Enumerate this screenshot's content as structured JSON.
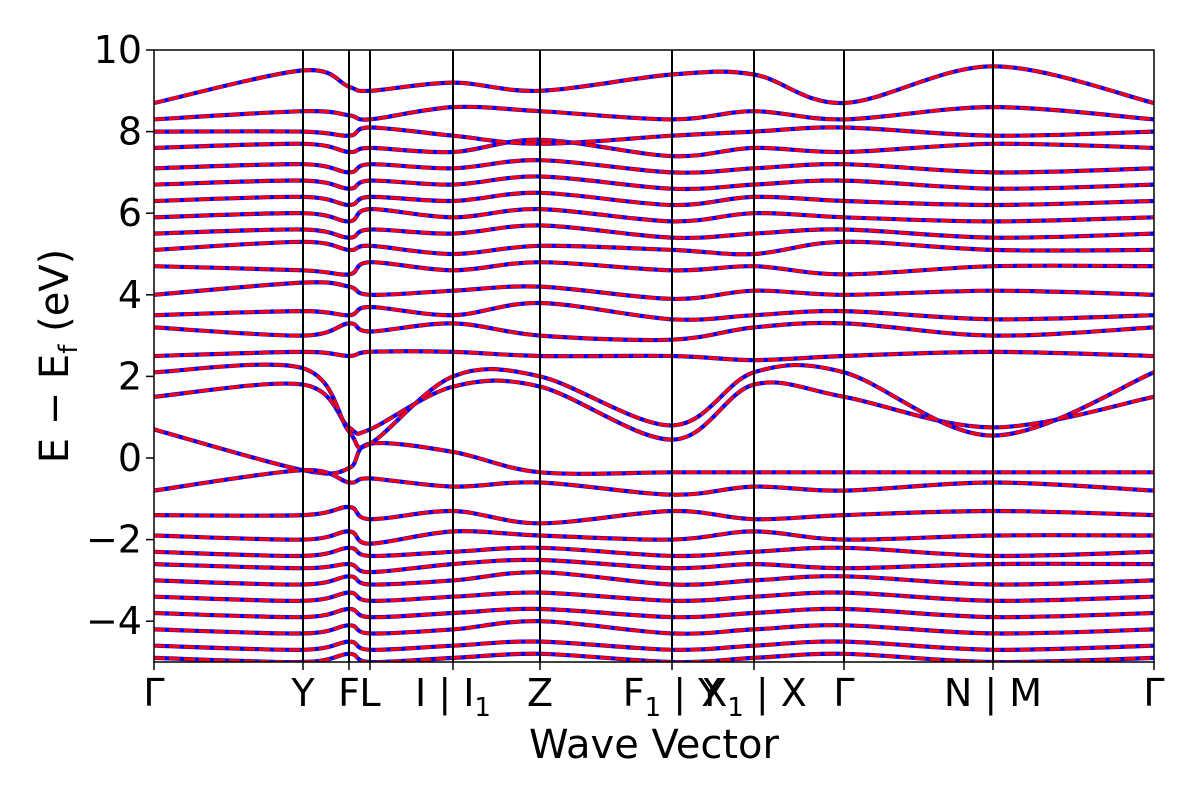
{
  "chart_data": {
    "type": "line",
    "title": "",
    "xlabel": "Wave Vector",
    "ylabel": "E − E_f (eV)",
    "ylabel_parts": {
      "main": "E − E",
      "sub": "f",
      "unit": " (eV)"
    },
    "ylim": [
      -5,
      10
    ],
    "xlim": [
      0,
      1
    ],
    "y_ticks": [
      {
        "value": 10,
        "label": "10"
      },
      {
        "value": 8,
        "label": "8"
      },
      {
        "value": 6,
        "label": "6"
      },
      {
        "value": 4,
        "label": "4"
      },
      {
        "value": 2,
        "label": "2"
      },
      {
        "value": 0,
        "label": "0"
      },
      {
        "value": -2,
        "label": "−2"
      },
      {
        "value": -4,
        "label": "−4"
      }
    ],
    "kpoints": [
      {
        "x": 0.0,
        "label": "Γ",
        "sub": "",
        "tail": ""
      },
      {
        "x": 0.149,
        "label": "Y",
        "sub": "",
        "tail": ""
      },
      {
        "x": 0.195,
        "label": "F",
        "sub": "",
        "tail": ""
      },
      {
        "x": 0.216,
        "label": "L",
        "sub": "",
        "tail": ""
      },
      {
        "x": 0.299,
        "label": "I | I",
        "sub": "1",
        "tail": ""
      },
      {
        "x": 0.386,
        "label": "Z",
        "sub": "",
        "tail": ""
      },
      {
        "x": 0.518,
        "label": "F",
        "sub": "1",
        "tail": " | Y"
      },
      {
        "x": 0.6,
        "label": "X",
        "sub": "1",
        "tail": " | X"
      },
      {
        "x": 0.69,
        "label": "Γ",
        "sub": "",
        "tail": ""
      },
      {
        "x": 0.839,
        "label": "N | M",
        "sub": "",
        "tail": ""
      },
      {
        "x": 1.0,
        "label": "Γ",
        "sub": "",
        "tail": ""
      }
    ],
    "series_styles": [
      {
        "role": "reference",
        "color": "#0000ff",
        "style": "solid",
        "width": 4.2
      },
      {
        "role": "overlay",
        "color": "#ff0000",
        "style": "dashed",
        "width": 3.2
      }
    ],
    "bands": [
      [
        0.7,
        -0.3,
        -0.25,
        0.35,
        0.15,
        -0.35,
        -0.35,
        -0.35,
        -0.35,
        -0.35,
        -0.35
      ],
      [
        1.5,
        1.8,
        0.75,
        0.7,
        1.75,
        1.75,
        0.45,
        1.8,
        1.5,
        0.75,
        1.5
      ],
      [
        2.1,
        2.2,
        0.65,
        0.35,
        2.0,
        2.0,
        0.8,
        2.1,
        2.1,
        0.55,
        2.1
      ],
      [
        2.5,
        2.6,
        2.5,
        2.6,
        2.6,
        2.5,
        2.5,
        2.4,
        2.5,
        2.6,
        2.5
      ],
      [
        3.2,
        3.0,
        3.3,
        3.1,
        3.3,
        3.0,
        2.9,
        3.2,
        3.3,
        3.0,
        3.2
      ],
      [
        3.5,
        3.6,
        3.5,
        3.7,
        3.5,
        3.8,
        3.4,
        3.5,
        3.6,
        3.4,
        3.5
      ],
      [
        4.0,
        4.3,
        4.2,
        4.0,
        4.1,
        4.2,
        3.9,
        4.1,
        4.0,
        4.1,
        4.0
      ],
      [
        4.7,
        4.6,
        4.5,
        4.8,
        4.6,
        4.8,
        4.6,
        4.7,
        4.5,
        4.7,
        4.7
      ],
      [
        5.1,
        5.3,
        5.1,
        5.2,
        5.0,
        5.2,
        5.1,
        5.0,
        5.3,
        5.1,
        5.1
      ],
      [
        5.5,
        5.6,
        5.4,
        5.6,
        5.5,
        5.7,
        5.4,
        5.5,
        5.6,
        5.4,
        5.5
      ],
      [
        5.9,
        6.0,
        5.8,
        6.1,
        5.9,
        6.1,
        5.8,
        6.0,
        5.9,
        5.8,
        5.9
      ],
      [
        6.3,
        6.4,
        6.2,
        6.4,
        6.3,
        6.5,
        6.2,
        6.4,
        6.3,
        6.2,
        6.3
      ],
      [
        6.7,
        6.8,
        6.6,
        6.8,
        6.7,
        6.9,
        6.6,
        6.7,
        6.8,
        6.6,
        6.7
      ],
      [
        7.1,
        7.2,
        7.0,
        7.2,
        7.1,
        7.3,
        7.0,
        7.1,
        7.2,
        7.0,
        7.1
      ],
      [
        7.6,
        7.7,
        7.5,
        7.6,
        7.5,
        7.8,
        7.4,
        7.6,
        7.5,
        7.7,
        7.6
      ],
      [
        8.0,
        8.0,
        7.9,
        8.1,
        7.9,
        7.7,
        7.9,
        8.0,
        8.1,
        7.9,
        8.0
      ],
      [
        8.3,
        8.5,
        8.4,
        8.3,
        8.6,
        8.5,
        8.3,
        8.5,
        8.3,
        8.6,
        8.3
      ],
      [
        8.7,
        9.5,
        9.1,
        9.0,
        9.2,
        9.0,
        9.4,
        9.4,
        8.7,
        9.6,
        8.7
      ],
      [
        -0.8,
        -0.3,
        -0.6,
        -0.5,
        -0.7,
        -0.6,
        -0.9,
        -0.7,
        -0.8,
        -0.6,
        -0.8
      ],
      [
        -1.4,
        -1.4,
        -1.2,
        -1.5,
        -1.3,
        -1.6,
        -1.3,
        -1.5,
        -1.4,
        -1.3,
        -1.4
      ],
      [
        -1.9,
        -2.0,
        -1.8,
        -2.1,
        -1.8,
        -1.9,
        -2.0,
        -1.8,
        -2.0,
        -1.9,
        -1.9
      ],
      [
        -2.3,
        -2.4,
        -2.2,
        -2.4,
        -2.3,
        -2.2,
        -2.4,
        -2.3,
        -2.2,
        -2.4,
        -2.3
      ],
      [
        -2.6,
        -2.7,
        -2.6,
        -2.8,
        -2.6,
        -2.5,
        -2.7,
        -2.6,
        -2.7,
        -2.6,
        -2.6
      ],
      [
        -3.0,
        -3.1,
        -2.9,
        -3.1,
        -3.0,
        -2.8,
        -3.1,
        -3.0,
        -2.9,
        -3.1,
        -3.0
      ],
      [
        -3.4,
        -3.5,
        -3.3,
        -3.5,
        -3.4,
        -3.3,
        -3.5,
        -3.4,
        -3.3,
        -3.5,
        -3.4
      ],
      [
        -3.8,
        -3.9,
        -3.7,
        -3.9,
        -3.8,
        -3.7,
        -3.9,
        -3.8,
        -3.7,
        -3.9,
        -3.8
      ],
      [
        -4.2,
        -4.3,
        -4.1,
        -4.3,
        -4.2,
        -4.0,
        -4.3,
        -4.2,
        -4.1,
        -4.3,
        -4.2
      ],
      [
        -4.6,
        -4.7,
        -4.5,
        -4.7,
        -4.6,
        -4.5,
        -4.7,
        -4.6,
        -4.5,
        -4.7,
        -4.6
      ],
      [
        -4.9,
        -5.0,
        -4.8,
        -5.0,
        -4.9,
        -4.8,
        -5.0,
        -4.9,
        -4.8,
        -5.0,
        -4.9
      ]
    ],
    "grid": false,
    "legend": "none"
  }
}
